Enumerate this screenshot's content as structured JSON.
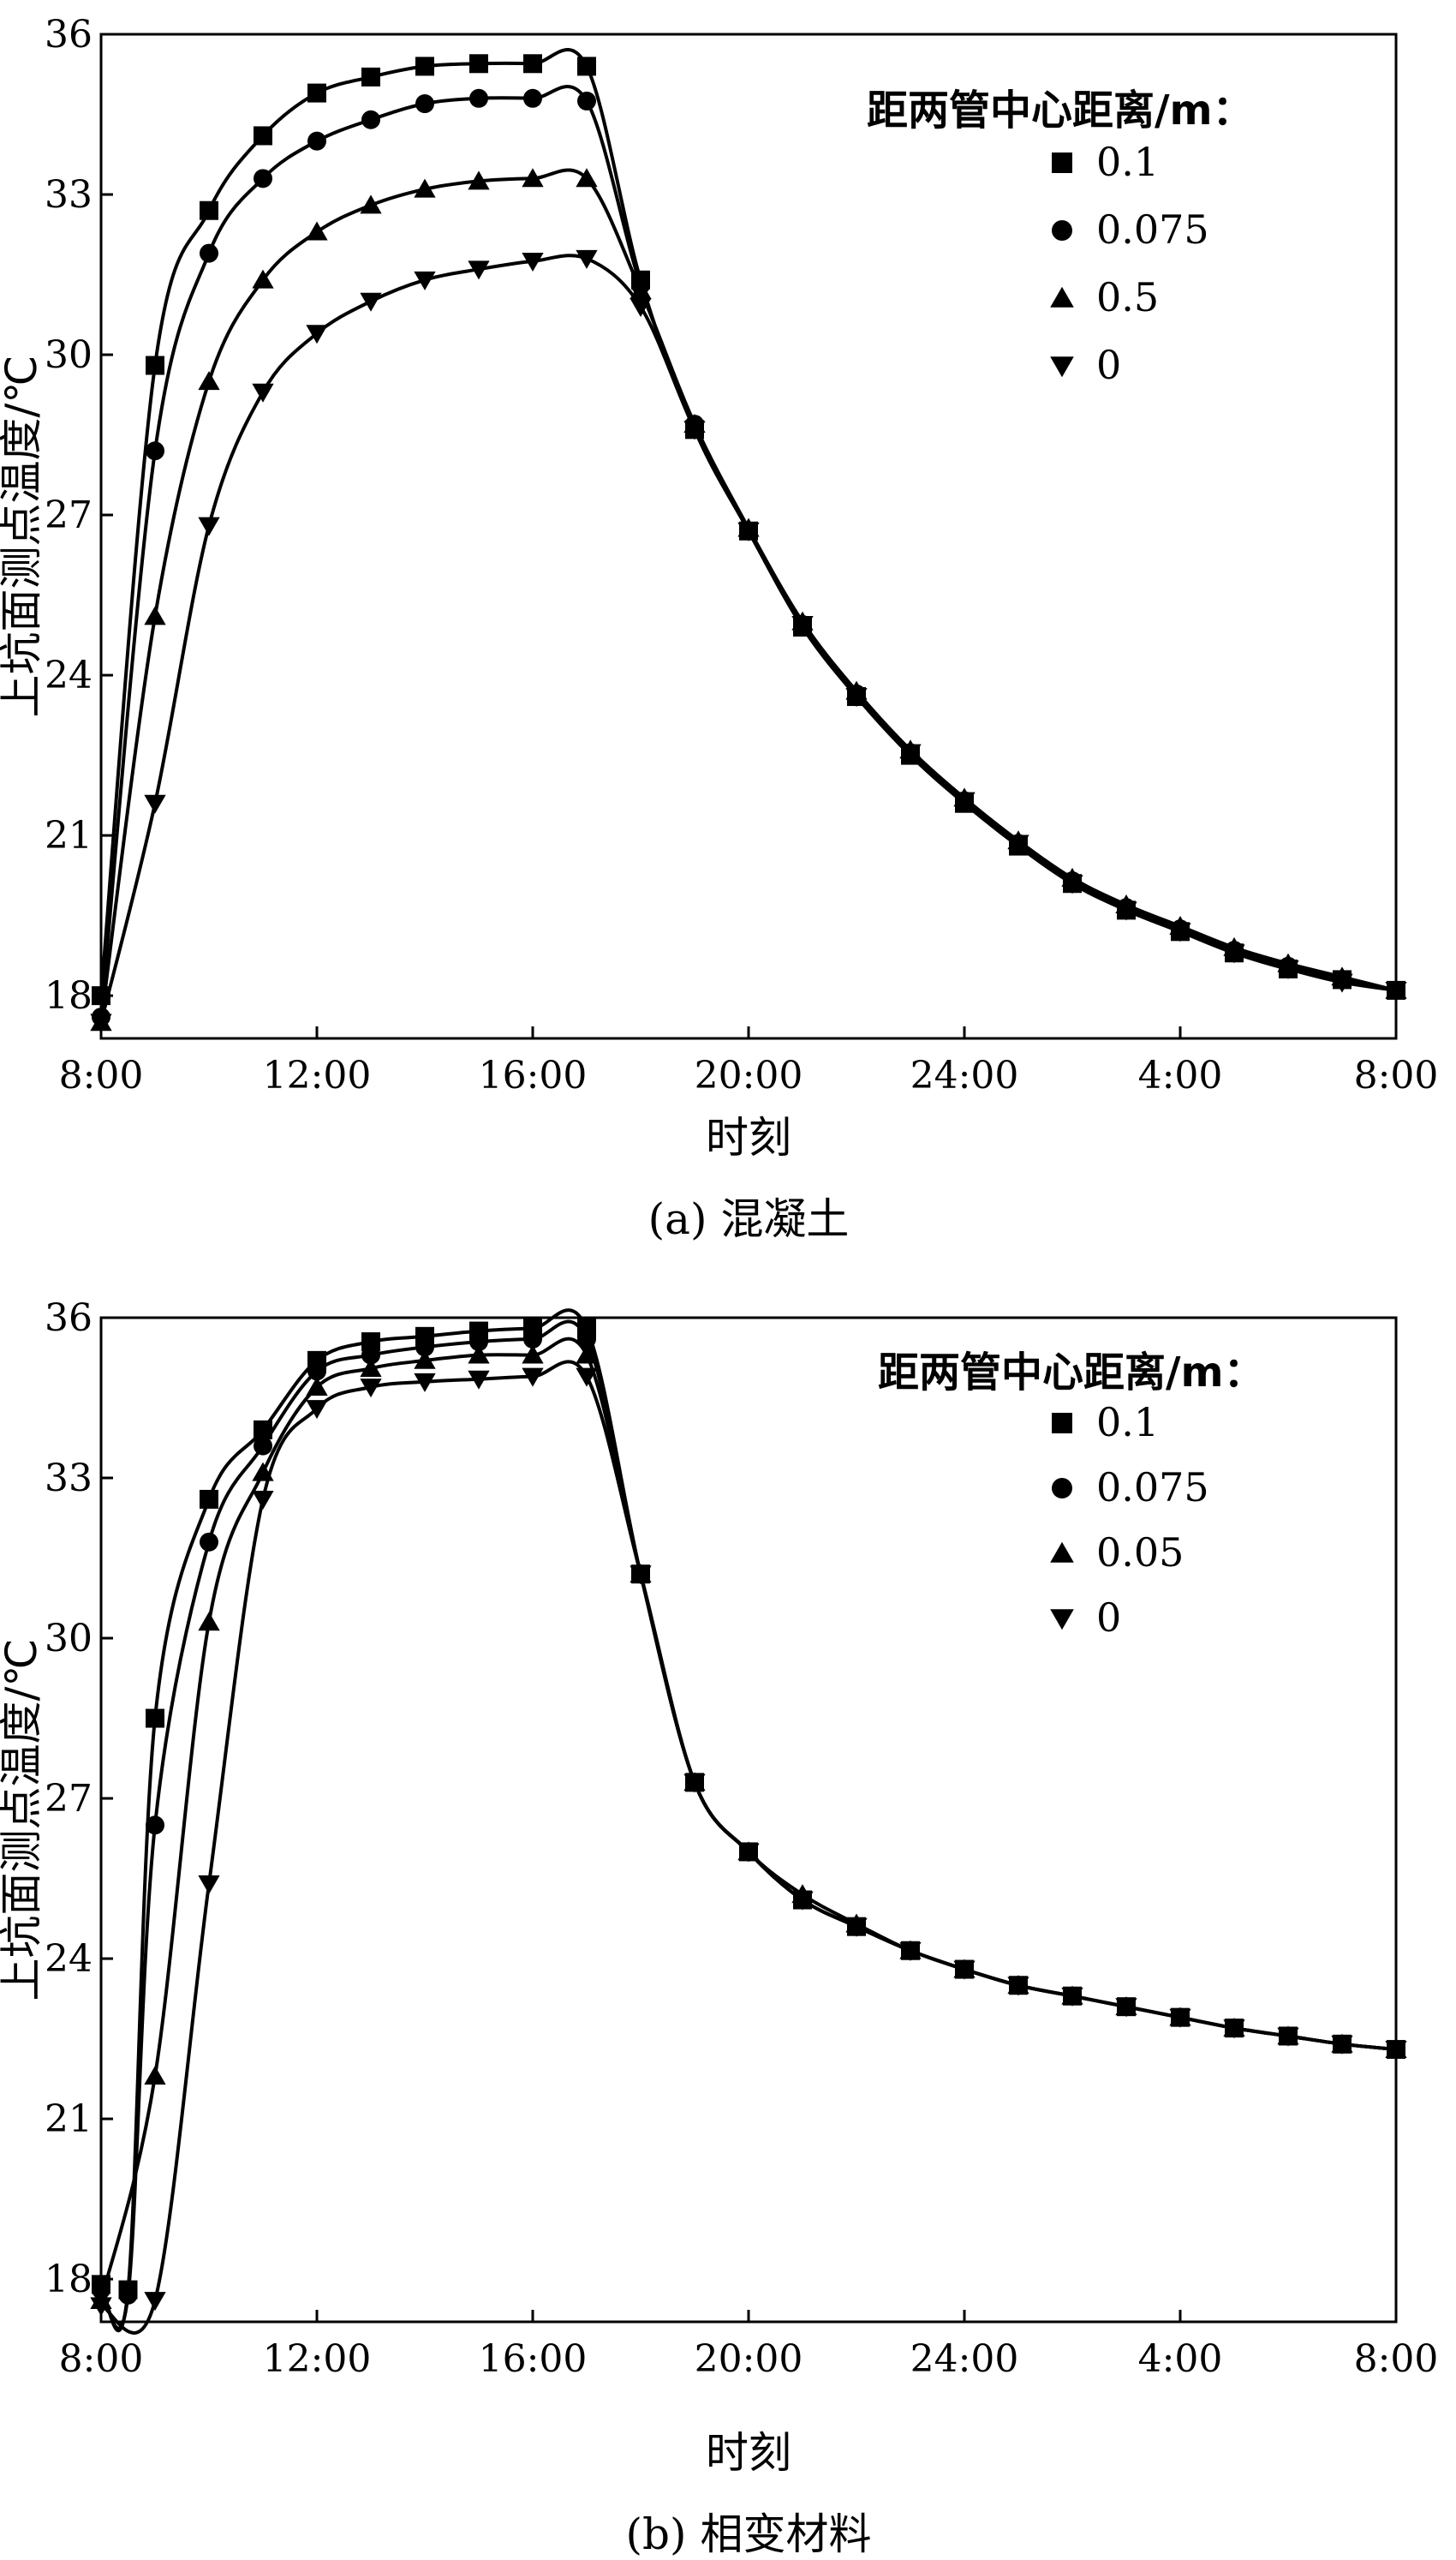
{
  "chart_data": [
    {
      "type": "line",
      "caption": "(a) 混凝土",
      "xlabel": "时刻",
      "ylabel": "上坑面测点温度/℃",
      "x_tick_labels": [
        "8:00",
        "12:00",
        "16:00",
        "20:00",
        "24:00",
        "4:00",
        "8:00"
      ],
      "x_hours": [
        8,
        32
      ],
      "y_ticks": [
        18,
        21,
        24,
        27,
        30,
        33,
        36
      ],
      "ylim": [
        17.2,
        36
      ],
      "grid": false,
      "legend_title": "距两管中心距离/m：",
      "legend_placement": "top-right",
      "series": [
        {
          "name": "0.1",
          "marker": "square",
          "x": [
            8.0,
            9.0,
            10.0,
            11.0,
            12.0,
            13.0,
            14.0,
            15.0,
            16.0,
            17.0,
            18.0,
            19.0,
            20.0,
            21.0,
            22.0,
            23.0,
            24.0,
            25.0,
            26.0,
            27.0,
            28.0,
            29.0,
            30.0,
            31.0,
            32.0
          ],
          "y": [
            18.0,
            29.8,
            32.7,
            34.1,
            34.9,
            35.2,
            35.4,
            35.45,
            35.45,
            35.4,
            31.4,
            28.6,
            26.7,
            24.9,
            23.6,
            22.5,
            21.6,
            20.8,
            20.1,
            19.6,
            19.2,
            18.8,
            18.5,
            18.3,
            18.1
          ]
        },
        {
          "name": "0.075",
          "marker": "circle",
          "x": [
            8.0,
            9.0,
            10.0,
            11.0,
            12.0,
            13.0,
            14.0,
            15.0,
            16.0,
            17.0,
            18.0,
            19.0,
            20.0,
            21.0,
            22.0,
            23.0,
            24.0,
            25.0,
            26.0,
            27.0,
            28.0,
            29.0,
            30.0,
            31.0,
            32.0
          ],
          "y": [
            17.6,
            28.2,
            31.9,
            33.3,
            34.0,
            34.4,
            34.7,
            34.8,
            34.8,
            34.75,
            31.3,
            28.7,
            26.7,
            24.95,
            23.65,
            22.55,
            21.65,
            20.85,
            20.15,
            19.65,
            19.25,
            18.85,
            18.55,
            18.3,
            18.1
          ]
        },
        {
          "name": "0.5",
          "marker": "triangle-up",
          "x": [
            8.0,
            9.0,
            10.0,
            11.0,
            12.0,
            13.0,
            14.0,
            15.0,
            16.0,
            17.0,
            18.0,
            19.0,
            20.0,
            21.0,
            22.0,
            23.0,
            24.0,
            25.0,
            26.0,
            27.0,
            28.0,
            29.0,
            30.0,
            31.0,
            32.0
          ],
          "y": [
            17.5,
            25.1,
            29.5,
            31.4,
            32.3,
            32.8,
            33.1,
            33.25,
            33.3,
            33.3,
            31.2,
            28.7,
            26.75,
            25.0,
            23.7,
            22.6,
            21.7,
            20.9,
            20.2,
            19.7,
            19.3,
            18.9,
            18.6,
            18.35,
            18.1
          ]
        },
        {
          "name": "0",
          "marker": "triangle-down",
          "x": [
            8.0,
            9.0,
            10.0,
            11.0,
            12.0,
            13.0,
            14.0,
            15.0,
            16.0,
            17.0,
            18.0,
            19.0,
            20.0,
            21.0,
            22.0,
            23.0,
            24.0,
            25.0,
            26.0,
            27.0,
            28.0,
            29.0,
            30.0,
            31.0,
            32.0
          ],
          "y": [
            17.5,
            21.6,
            26.8,
            29.3,
            30.4,
            31.0,
            31.4,
            31.6,
            31.75,
            31.8,
            30.9,
            28.6,
            26.7,
            24.95,
            23.6,
            22.55,
            21.65,
            20.85,
            20.1,
            19.6,
            19.2,
            18.8,
            18.5,
            18.25,
            18.1
          ]
        }
      ]
    },
    {
      "type": "line",
      "caption": "(b) 相变材料",
      "xlabel": "时刻",
      "ylabel": "上坑面测点温度/℃",
      "x_tick_labels": [
        "8:00",
        "12:00",
        "16:00",
        "20:00",
        "24:00",
        "4:00",
        "8:00"
      ],
      "x_hours": [
        8,
        32
      ],
      "y_ticks": [
        18,
        21,
        24,
        27,
        30,
        33,
        36
      ],
      "ylim": [
        17.2,
        36
      ],
      "grid": false,
      "legend_title": "距两管中心距离/m：",
      "legend_placement": "top-right",
      "series": [
        {
          "name": "0.1",
          "marker": "square",
          "x": [
            8.0,
            8.5,
            9.0,
            10.0,
            11.0,
            12.0,
            13.0,
            14.0,
            15.0,
            16.0,
            17.0,
            18.0,
            19.0,
            20.0,
            21.0,
            22.0,
            23.0,
            24.0,
            25.0,
            26.0,
            27.0,
            28.0,
            29.0,
            30.0,
            31.0,
            32.0
          ],
          "y": [
            17.9,
            17.8,
            28.5,
            32.6,
            33.9,
            35.2,
            35.55,
            35.65,
            35.75,
            35.8,
            35.8,
            31.2,
            27.3,
            26.0,
            25.1,
            24.6,
            24.15,
            23.8,
            23.5,
            23.3,
            23.1,
            22.9,
            22.7,
            22.55,
            22.4,
            22.3
          ]
        },
        {
          "name": "0.075",
          "marker": "circle",
          "x": [
            8.0,
            8.5,
            9.0,
            10.0,
            11.0,
            12.0,
            13.0,
            14.0,
            15.0,
            16.0,
            17.0,
            18.0,
            19.0,
            20.0,
            21.0,
            22.0,
            23.0,
            24.0,
            25.0,
            26.0,
            27.0,
            28.0,
            29.0,
            30.0,
            31.0,
            32.0
          ],
          "y": [
            17.8,
            17.7,
            26.5,
            31.8,
            33.6,
            35.0,
            35.3,
            35.45,
            35.55,
            35.6,
            35.6,
            31.2,
            27.3,
            26.0,
            25.1,
            24.6,
            24.15,
            23.8,
            23.5,
            23.3,
            23.1,
            22.9,
            22.7,
            22.55,
            22.4,
            22.3
          ]
        },
        {
          "name": "0.05",
          "marker": "triangle-up",
          "x": [
            8.0,
            9.0,
            10.0,
            11.0,
            12.0,
            13.0,
            14.0,
            15.0,
            16.0,
            17.0,
            18.0,
            19.0,
            20.0,
            21.0,
            22.0,
            23.0,
            24.0,
            25.0,
            26.0,
            27.0,
            28.0,
            29.0,
            30.0,
            31.0,
            32.0
          ],
          "y": [
            17.6,
            21.8,
            30.3,
            33.1,
            34.7,
            35.05,
            35.2,
            35.3,
            35.3,
            35.3,
            31.2,
            27.3,
            26.0,
            25.2,
            24.65,
            24.15,
            23.8,
            23.5,
            23.3,
            23.1,
            22.9,
            22.7,
            22.55,
            22.4,
            22.3
          ]
        },
        {
          "name": "0",
          "marker": "triangle-down",
          "x": [
            8.0,
            9.0,
            10.0,
            11.0,
            12.0,
            13.0,
            14.0,
            15.0,
            16.0,
            17.0,
            18.0,
            19.0,
            20.0,
            21.0,
            22.0,
            23.0,
            24.0,
            25.0,
            26.0,
            27.0,
            28.0,
            29.0,
            30.0,
            31.0,
            32.0
          ],
          "y": [
            17.5,
            17.6,
            25.4,
            32.6,
            34.3,
            34.7,
            34.8,
            34.85,
            34.9,
            34.9,
            31.2,
            27.3,
            26.0,
            25.1,
            24.6,
            24.15,
            23.8,
            23.5,
            23.3,
            23.1,
            22.9,
            22.7,
            22.55,
            22.4,
            22.3
          ]
        }
      ]
    }
  ]
}
